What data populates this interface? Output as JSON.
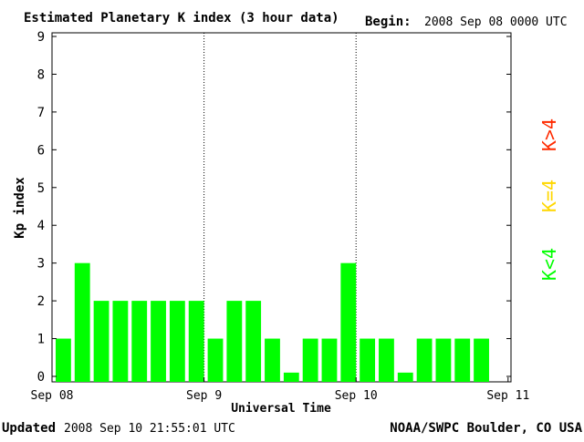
{
  "header": {
    "title": "Estimated Planetary K index (3 hour data)",
    "begin_label": "Begin:",
    "begin_value": "2008 Sep 08 0000 UTC"
  },
  "footer": {
    "updated_label": "Updated",
    "updated_value": "2008 Sep 10 21:55:01 UTC",
    "credit": "NOAA/SWPC Boulder, CO USA"
  },
  "legend": {
    "high": "K>4",
    "mid": "K=4",
    "low": "K<4"
  },
  "colors": {
    "low": "#00ff00",
    "mid": "#ffd700",
    "high": "#ff2a00"
  },
  "chart_data": {
    "type": "bar",
    "title": "Estimated Planetary K index (3 hour data)",
    "xlabel": "Universal Time",
    "ylabel": "Kp index",
    "ylim": [
      0,
      9
    ],
    "yticks": [
      0,
      1,
      2,
      3,
      4,
      5,
      6,
      7,
      8,
      9
    ],
    "xticks": [
      "Sep 08",
      "Sep 9",
      "Sep 10",
      "Sep 11"
    ],
    "day_dividers": [
      "Sep 9",
      "Sep 10"
    ],
    "interval_hours": 3,
    "values": [
      1,
      3,
      2,
      2,
      2,
      2,
      2,
      2,
      1,
      2,
      2,
      1,
      0.1,
      1,
      1,
      3,
      1,
      1,
      0.1,
      1,
      1,
      1,
      1
    ],
    "legend_placement": "right"
  }
}
